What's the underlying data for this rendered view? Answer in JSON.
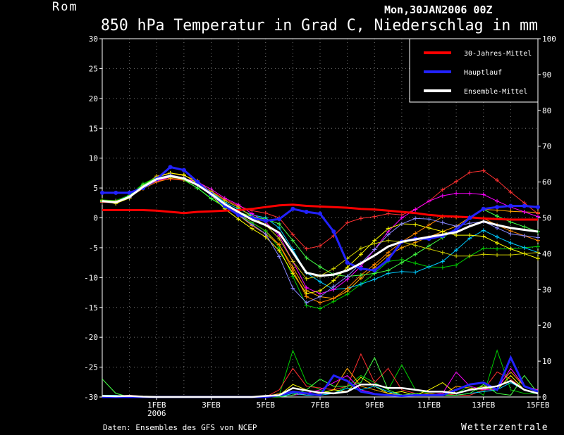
{
  "header": {
    "location": "Rom",
    "run": "Mon,30JAN2006 00Z",
    "title": "850 hPa Temperatur in Grad C, Niederschlag in mm"
  },
  "footer": {
    "source": "Daten: Ensembles des GFS von NCEP",
    "brand": "Wetterzentrale"
  },
  "chart_data": {
    "type": "line",
    "title": "850 hPa Temperatur in Grad C, Niederschlag in mm",
    "x_unit": "days since 30JAN2006 00Z",
    "xlim": [
      0,
      16
    ],
    "ylim_left": [
      -30,
      30
    ],
    "ylim_right": [
      0,
      100
    ],
    "y_ticks_left": [
      30,
      25,
      20,
      15,
      10,
      5,
      0,
      -5,
      -10,
      -15,
      -20,
      -25,
      -30
    ],
    "y_ticks_right": [
      100,
      90,
      80,
      70,
      60,
      50,
      40,
      30,
      20,
      10,
      0
    ],
    "x_ticks": [
      {
        "x": 2,
        "label": "1FEB",
        "sub": "2006"
      },
      {
        "x": 4,
        "label": "3FEB"
      },
      {
        "x": 6,
        "label": "5FEB"
      },
      {
        "x": 8,
        "label": "7FEB"
      },
      {
        "x": 10,
        "label": "9FEB"
      },
      {
        "x": 12,
        "label": "11FEB"
      },
      {
        "x": 14,
        "label": "13FEB"
      },
      {
        "x": 16,
        "label": "15FEB"
      }
    ],
    "grid": true,
    "legend_position": "top-right",
    "legend": [
      {
        "name": "30-Jahres-Mittel",
        "color": "#ff0000"
      },
      {
        "name": "Hauptlauf",
        "color": "#2222ff"
      },
      {
        "name": "Ensemble-Mittel",
        "color": "#ffffff"
      }
    ],
    "temperature": {
      "x": [
        0,
        0.5,
        1,
        1.5,
        2,
        2.5,
        3,
        3.5,
        4,
        4.5,
        5,
        5.5,
        6,
        6.5,
        7,
        7.5,
        8,
        8.5,
        9,
        9.5,
        10,
        10.5,
        11,
        11.5,
        12,
        12.5,
        13,
        13.5,
        14,
        14.5,
        15,
        15.5,
        16
      ],
      "climate": [
        1.3,
        1.3,
        1.3,
        1.3,
        1.2,
        1.0,
        0.8,
        1.0,
        1.1,
        1.2,
        1.3,
        1.5,
        1.8,
        2.1,
        2.2,
        2.0,
        1.9,
        1.8,
        1.7,
        1.5,
        1.4,
        1.2,
        1.0,
        0.8,
        0.5,
        0.3,
        0.2,
        0.1,
        -0.1,
        -0.2,
        -0.3,
        -0.3,
        -0.3
      ],
      "main_run": [
        4.2,
        4.2,
        4.2,
        5.0,
        6.5,
        8.5,
        8.0,
        6.0,
        4.0,
        2.0,
        0.5,
        0.0,
        -0.5,
        -0.2,
        1.5,
        1.0,
        0.7,
        -2.3,
        -7.5,
        -8.5,
        -8.8,
        -7.0,
        -4.0,
        -3.5,
        -3.5,
        -3.0,
        -2.0,
        0.0,
        1.5,
        1.8,
        2.0,
        2.0,
        1.8
      ],
      "ensemble_mean": [
        2.8,
        2.6,
        3.5,
        5.2,
        6.5,
        7.0,
        6.6,
        5.5,
        4.0,
        2.3,
        1.0,
        -0.3,
        -1.2,
        -2.5,
        -5.8,
        -9.2,
        -9.7,
        -9.5,
        -8.8,
        -7.6,
        -6.3,
        -4.8,
        -4.0,
        -3.6,
        -3.2,
        -2.8,
        -2.4,
        -1.4,
        -0.6,
        -1.2,
        -1.7,
        -2.0,
        -2.3
      ],
      "members_offsets": [
        [
          0.0,
          0.0,
          0.0,
          0.2,
          0.5,
          0.5,
          0.5,
          0.7,
          0.3,
          0.0,
          -0.3,
          -0.5,
          -1.0,
          -2.0,
          -2.5,
          -3.0,
          -3.5,
          -4.0,
          -3.5,
          -2.5,
          -2.0,
          -1.5,
          -1.0,
          -0.5,
          0.0,
          0.5,
          1.0,
          1.5,
          2.0,
          2.5,
          2.8,
          3.0,
          3.2
        ],
        [
          0.2,
          0.3,
          0.3,
          0.5,
          0.3,
          0.0,
          -0.3,
          -0.5,
          -0.7,
          -0.5,
          -0.5,
          -0.5,
          -1.0,
          -2.5,
          -4.0,
          -5.5,
          -5.5,
          -4.5,
          -4.0,
          -3.5,
          -3.0,
          -2.5,
          -3.0,
          -4.0,
          -5.0,
          -5.5,
          -5.5,
          -5.0,
          -4.5,
          -4.0,
          -3.5,
          -3.0,
          -2.5
        ],
        [
          -0.2,
          -0.1,
          0.0,
          0.0,
          -0.3,
          -0.5,
          -0.3,
          0.0,
          0.5,
          0.8,
          1.0,
          1.5,
          2.0,
          2.5,
          3.0,
          4.0,
          5.0,
          6.5,
          8.0,
          7.5,
          6.5,
          5.5,
          4.5,
          5.0,
          6.0,
          7.5,
          8.5,
          9.0,
          8.5,
          7.5,
          6.0,
          4.5,
          3.0
        ],
        [
          0.1,
          0.1,
          0.2,
          0.2,
          0.0,
          -0.1,
          0.0,
          0.2,
          0.3,
          0.3,
          0.5,
          0.8,
          1.2,
          0.8,
          0.5,
          0.0,
          -1.0,
          -2.5,
          -3.0,
          -3.5,
          -4.0,
          -4.5,
          -5.0,
          -5.5,
          -5.0,
          -4.5,
          -3.0,
          -2.0,
          -1.5,
          -2.0,
          -2.5,
          -3.0,
          -3.5
        ],
        [
          -0.1,
          0.0,
          0.0,
          -0.2,
          -0.3,
          -0.2,
          0.0,
          0.5,
          0.8,
          1.0,
          1.2,
          1.0,
          0.5,
          -0.5,
          -1.5,
          -2.5,
          -3.0,
          -2.5,
          -1.5,
          -0.5,
          1.0,
          2.5,
          4.0,
          5.0,
          6.0,
          6.5,
          6.5,
          5.5,
          4.5,
          4.0,
          3.5,
          3.0,
          2.5
        ],
        [
          0.0,
          -0.2,
          -0.2,
          0.0,
          0.3,
          0.5,
          0.6,
          0.3,
          -0.2,
          -0.8,
          -1.2,
          -1.5,
          -2.0,
          -3.0,
          -3.5,
          -3.5,
          -2.5,
          -1.0,
          0.5,
          1.5,
          2.5,
          3.0,
          3.0,
          2.5,
          1.5,
          0.5,
          -0.5,
          -1.5,
          -2.5,
          -3.0,
          -3.5,
          -4.0,
          -4.5
        ],
        [
          0.1,
          0.2,
          0.0,
          -0.3,
          -0.5,
          -0.4,
          -0.2,
          0.0,
          0.2,
          0.0,
          -0.5,
          -1.0,
          -1.5,
          -2.0,
          -3.0,
          -4.0,
          -4.5,
          -4.0,
          -3.0,
          -2.0,
          -1.5,
          -1.0,
          0.0,
          1.0,
          2.0,
          3.0,
          2.5,
          1.5,
          0.5,
          0.0,
          -0.5,
          -1.0,
          -1.5
        ],
        [
          -0.1,
          0.0,
          0.2,
          0.3,
          0.2,
          0.0,
          -0.2,
          -0.5,
          -0.8,
          -0.5,
          0.0,
          0.5,
          1.0,
          1.5,
          2.0,
          2.5,
          1.5,
          0.0,
          -1.0,
          -2.0,
          -3.0,
          -4.0,
          -3.5,
          -2.5,
          -1.5,
          -0.5,
          0.5,
          1.5,
          2.0,
          1.5,
          1.0,
          0.5,
          0.0
        ],
        [
          0.0,
          0.1,
          -0.1,
          0.0,
          0.1,
          0.2,
          0.1,
          0.0,
          -0.2,
          -0.3,
          -0.5,
          -0.8,
          -1.5,
          -4.0,
          -6.0,
          -5.0,
          -3.5,
          -2.0,
          -1.0,
          0.0,
          1.0,
          2.0,
          3.0,
          3.5,
          3.0,
          2.0,
          1.0,
          0.5,
          0.0,
          -0.5,
          -1.0,
          -1.0,
          -1.0
        ],
        [
          0.1,
          0.0,
          0.1,
          0.1,
          0.0,
          -0.2,
          -0.1,
          0.2,
          0.4,
          0.6,
          0.8,
          0.5,
          0.0,
          -1.0,
          -1.5,
          -1.0,
          0.0,
          1.0,
          2.0,
          2.5,
          2.0,
          1.0,
          0.0,
          -1.0,
          -2.0,
          -3.0,
          -4.0,
          -5.0,
          -5.5,
          -5.0,
          -4.5,
          -4.0,
          -3.5
        ]
      ],
      "members_colors": [
        "#ffa500",
        "#00cc00",
        "#ff3030",
        "#00ccff",
        "#ff00ff",
        "#ffff00",
        "#ff8800",
        "#44ff44",
        "#8888ff",
        "#cccc00"
      ]
    },
    "precipitation": {
      "x": [
        0,
        0.5,
        1,
        1.5,
        2,
        2.5,
        3,
        3.5,
        4,
        4.5,
        5,
        5.5,
        6,
        6.5,
        7,
        7.5,
        8,
        8.5,
        9,
        9.5,
        10,
        10.5,
        11,
        11.5,
        12,
        12.5,
        13,
        13.5,
        14,
        14.5,
        15,
        15.5,
        16
      ],
      "main_run": [
        0,
        0,
        0,
        0,
        0,
        0,
        0,
        0,
        0,
        0,
        0,
        0,
        0,
        0.5,
        1.5,
        1.0,
        0.5,
        6.0,
        4.5,
        1.5,
        0.8,
        0.5,
        0.3,
        0.5,
        0.5,
        0.5,
        2.0,
        3.5,
        4.0,
        2.0,
        11.0,
        3.0,
        1.5
      ],
      "ensemble_mean": [
        0.3,
        0.2,
        0.3,
        0.1,
        0,
        0,
        0,
        0,
        0,
        0,
        0,
        0,
        0.3,
        0.5,
        2.5,
        1.8,
        1.2,
        1.0,
        1.5,
        3.5,
        3.5,
        2.5,
        2.5,
        2.0,
        1.5,
        1.5,
        1.0,
        2.0,
        2.5,
        3.0,
        4.5,
        2.0,
        1.0
      ],
      "members": [
        [
          0,
          0,
          0,
          0,
          0,
          0,
          0,
          0,
          0,
          0,
          0,
          0,
          0,
          0.5,
          13.0,
          4.0,
          2.0,
          1.0,
          3.0,
          6.0,
          4.0,
          2.0,
          9.0,
          2.0,
          1.0,
          0.5,
          1.0,
          3.0,
          0.5,
          13.0,
          2.0,
          1.0,
          1.0
        ],
        [
          0.2,
          0.3,
          0.5,
          0.2,
          0,
          0,
          0,
          0,
          0,
          0,
          0,
          0,
          0,
          2.0,
          8.0,
          3.0,
          2.5,
          2.0,
          3.0,
          12.0,
          4.0,
          8.0,
          2.0,
          1.0,
          0.5,
          1.0,
          0.5,
          0.5,
          2.0,
          7.0,
          5.0,
          2.0,
          1.0
        ],
        [
          0,
          0,
          0,
          0,
          0,
          0,
          0,
          0,
          0,
          0,
          0,
          0,
          0,
          1.0,
          1.5,
          0.5,
          1.0,
          2.0,
          8.0,
          3.0,
          2.0,
          1.0,
          0.5,
          0.5,
          1.0,
          0.5,
          3.0,
          2.5,
          2.0,
          3.0,
          7.0,
          3.0,
          2.0
        ],
        [
          0,
          0,
          0,
          0,
          0,
          0,
          0,
          0,
          0,
          0,
          0,
          0,
          0,
          0.5,
          3.5,
          2.0,
          1.0,
          2.0,
          1.5,
          5.5,
          3.0,
          1.0,
          1.5,
          0.5,
          2.0,
          4.0,
          1.0,
          2.0,
          3.0,
          2.0,
          6.0,
          2.0,
          1.0
        ],
        [
          0.5,
          0.3,
          0.3,
          0.1,
          0,
          0,
          0,
          0,
          0,
          0,
          0,
          0,
          0,
          0,
          0.5,
          1.0,
          2.0,
          4.0,
          6.0,
          2.0,
          1.0,
          0.5,
          0.5,
          0.5,
          0.5,
          1.0,
          7.0,
          3.0,
          2.0,
          2.0,
          8.0,
          3.0,
          2.0
        ],
        [
          0.5,
          0.5,
          0,
          0,
          0,
          0,
          0,
          0,
          0,
          0,
          0,
          0,
          0,
          0,
          1.0,
          0.5,
          0.5,
          1.0,
          2.5,
          2.0,
          3.0,
          1.5,
          0.5,
          0.5,
          0.5,
          0.5,
          0.5,
          1.0,
          1.5,
          2.0,
          4.0,
          2.0,
          1.0
        ],
        [
          5.0,
          1.0,
          0,
          0,
          0,
          0,
          0,
          0,
          0,
          0,
          0,
          0,
          0,
          0,
          0.5,
          2.0,
          5.0,
          3.0,
          3.0,
          4.0,
          11.0,
          2.0,
          0.5,
          1.0,
          0.5,
          0.5,
          0.5,
          1.0,
          3.5,
          1.0,
          0.5,
          6.0,
          1.0
        ]
      ],
      "members_colors": [
        "#00cc00",
        "#ff3030",
        "#ffa500",
        "#ffff00",
        "#ff00ff",
        "#00ccff",
        "#44ff44"
      ]
    }
  }
}
